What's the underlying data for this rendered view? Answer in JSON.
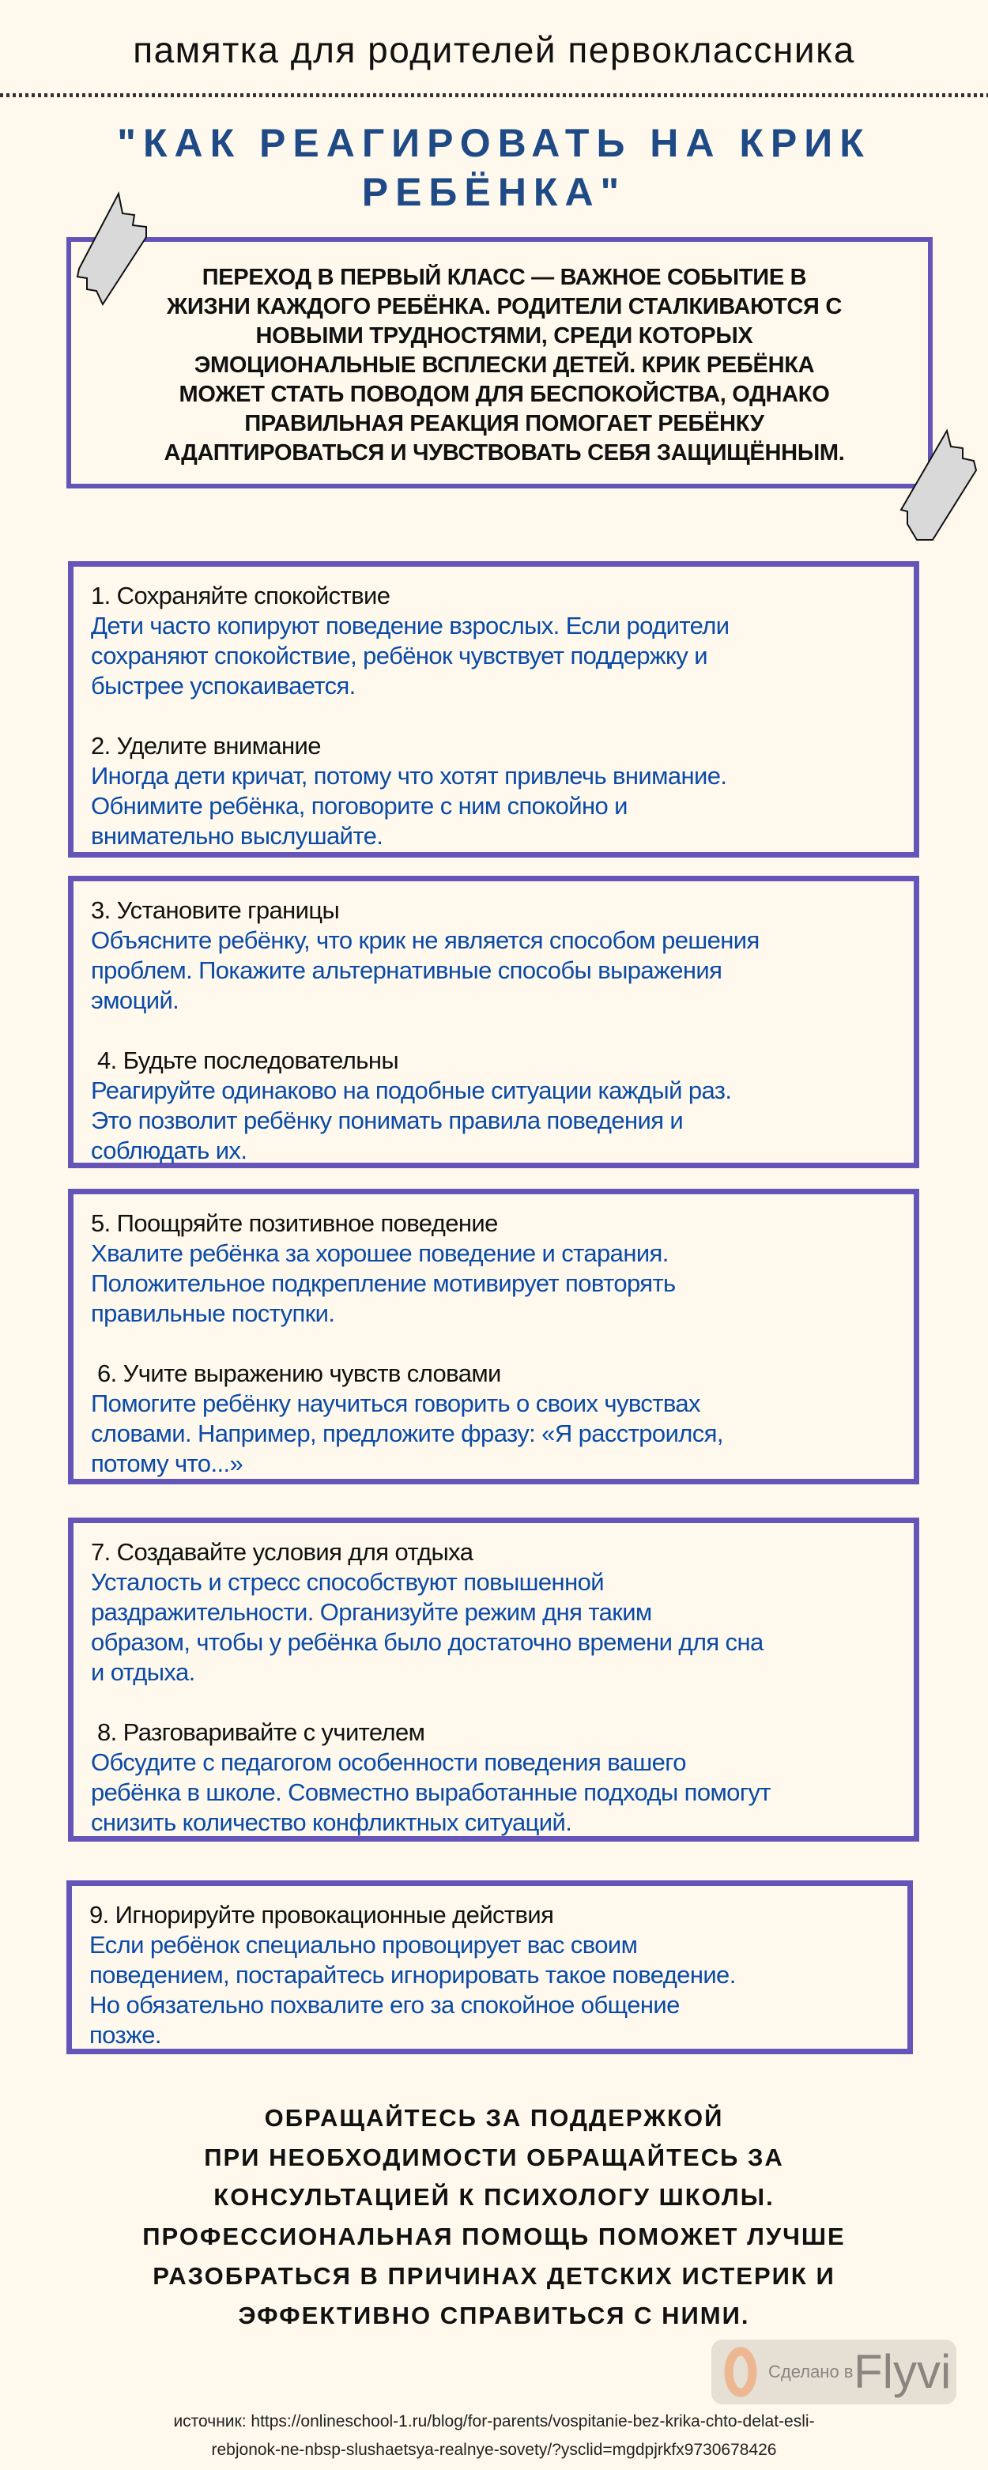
{
  "header": {
    "subtitle": "памятка для родителей первоклассника"
  },
  "title": {
    "line1": "\"КАК РЕАГИРОВАТЬ НА КРИК",
    "line2": "РЕБЁНКА\""
  },
  "intro": {
    "lines": [
      "Переход в первый класс — важное событие в",
      "жизни каждого ребёнка. Родители сталкиваются с",
      "новыми трудностями, среди которых",
      "эмоциональные всплески детей. Крик ребёнка",
      "может стать поводом для беспокойства, однако",
      "правильная реакция помогает ребёнку",
      "адаптироваться и чувствовать себя защищённым."
    ]
  },
  "boxes": [
    {
      "tips": [
        {
          "title": "1. Сохраняйте спокойствие",
          "lines": [
            "Дети часто копируют поведение взрослых. Если родители",
            "сохраняют спокойствие, ребёнок чувствует поддержку и",
            "быстрее успокаивается."
          ]
        },
        {
          "title": "2. Уделите внимание",
          "lines": [
            "Иногда дети кричат, потому что хотят привлечь внимание.",
            "Обнимите ребёнка, поговорите с ним спокойно и",
            "внимательно выслушайте."
          ]
        }
      ]
    },
    {
      "tips": [
        {
          "title": "3. Установите границы",
          "lines": [
            "Объясните ребёнку, что крик не является способом решения",
            "проблем. Покажите альтернативные способы выражения",
            "эмоций."
          ]
        },
        {
          "title": " 4. Будьте последовательны",
          "lines": [
            "Реагируйте одинаково на подобные ситуации каждый раз.",
            "Это позволит ребёнку понимать правила поведения и",
            "соблюдать их."
          ]
        }
      ]
    },
    {
      "tips": [
        {
          "title": "5. Поощряйте позитивное поведение",
          "lines": [
            "Хвалите ребёнка за хорошее поведение и старания.",
            "Положительное подкрепление мотивирует повторять",
            "правильные поступки."
          ]
        },
        {
          "title": " 6. Учите выражению чувств словами",
          "lines": [
            "Помогите ребёнку научиться говорить о своих чувствах",
            "словами. Например, предложите фразу: «Я расстроился,",
            "потому что...»"
          ]
        }
      ]
    },
    {
      "tips": [
        {
          "title": "7. Создавайте условия для отдыха",
          "lines": [
            "Усталость и стресс способствуют повышенной",
            "раздражительности. Организуйте режим дня таким",
            "образом, чтобы у ребёнка было достаточно времени для сна",
            "и отдыха."
          ]
        },
        {
          "title": " 8. Разговаривайте с учителем",
          "lines": [
            "Обсудите с педагогом особенности поведения вашего",
            "ребёнка в школе. Совместно выработанные подходы помогут",
            "снизить количество конфликтных ситуаций."
          ]
        }
      ]
    },
    {
      "tips": [
        {
          "title": "9. Игнорируйте провокационные действия",
          "lines": [
            "Если ребёнок специально провоцирует вас своим",
            "поведением, постарайтесь игнорировать такое поведение.",
            "Но обязательно похвалите его за спокойное общение",
            "позже."
          ]
        }
      ]
    }
  ],
  "footer": {
    "lines": [
      "Обращайтесь за поддержкой",
      "При необходимости обращайтесь за",
      "консультацией к психологу школы.",
      "Профессиональная помощь поможет лучше",
      "разобраться в причинах детских истерик и",
      "эффективно справиться с ними."
    ]
  },
  "source": {
    "line1": "источник: https://onlineschool-1.ru/blog/for-parents/vospitanie-bez-krika-chto-delat-esli-",
    "line2": "rebjonok-ne-nbsp-slushaetsya-realnye-sovety/?ysclid=mgdpjrkfx9730678426"
  },
  "watermark": {
    "made_in": "Сделано в",
    "brand": "Flyvi"
  },
  "colors": {
    "background": "#fef9ec",
    "border": "#6655b8",
    "tip_text": "#0b4aa6",
    "title": "#1f4a86",
    "tape": "#d9d9d9"
  },
  "icons": {
    "tape_top_left": "tape-icon",
    "tape_bottom_right": "tape-icon"
  }
}
